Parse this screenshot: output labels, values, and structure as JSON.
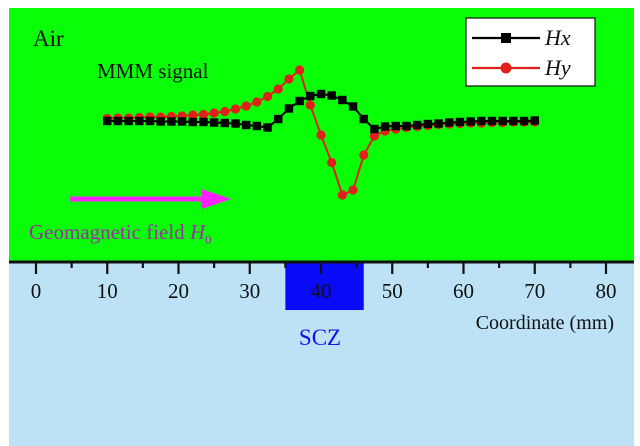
{
  "air_label": "Air",
  "signal_label": "MMM signal",
  "field_label": "Geomagnetic field ",
  "field_symbol": "H",
  "field_subscript": "0",
  "scz_label": "SCZ",
  "axis_title": "Coordinate (mm)",
  "colors": {
    "air": "#08ff07",
    "ground": "#bde2f6",
    "hx": "#000000",
    "hy": "#e0201b",
    "arrow": "#ff22ff",
    "field_text": "#a02ca6",
    "scz_fill": "#0a0afa",
    "scz_text": "#1414e6"
  },
  "chart_data": {
    "type": "line",
    "x_range": [
      0,
      80
    ],
    "ticks": [
      0,
      10,
      20,
      30,
      40,
      50,
      60,
      70,
      80
    ],
    "tick_labels": [
      "0",
      "10",
      "20",
      "30",
      "40",
      "50",
      "60",
      "70",
      "80"
    ],
    "scz_range": [
      35,
      46
    ],
    "arrow_range": [
      9,
      27
    ],
    "legend": [
      {
        "name": "Hx",
        "key": "hx"
      },
      {
        "name": "Hy",
        "key": "hy"
      }
    ],
    "series": [
      {
        "name": "Hx",
        "key": "hx",
        "marker": "square",
        "x": [
          10,
          11.5,
          13,
          14.5,
          16,
          17.5,
          19,
          20.5,
          22,
          23.5,
          25,
          26.5,
          28,
          29.5,
          31,
          32.5,
          34,
          35.5,
          37,
          38.5,
          40,
          41.5,
          43,
          44.5,
          46,
          47.5,
          49,
          50.5,
          52,
          53.5,
          55,
          56.5,
          58,
          59.5,
          61,
          62.5,
          64,
          65.5,
          67,
          68.5,
          70
        ],
        "y": [
          0.8,
          0.8,
          0.8,
          0.8,
          0.8,
          0.7,
          0.7,
          0.7,
          0.6,
          0.6,
          0.5,
          0.4,
          0.3,
          0,
          -0.2,
          -0.5,
          1.2,
          3.3,
          4.8,
          5.8,
          6.2,
          5.9,
          5.0,
          3.7,
          1.2,
          -0.8,
          -0.3,
          -0.2,
          -0.2,
          0,
          0.2,
          0.3,
          0.5,
          0.6,
          0.7,
          0.8,
          0.8,
          0.8,
          0.8,
          0.8,
          0.9
        ]
      },
      {
        "name": "Hy",
        "key": "hy",
        "marker": "circle",
        "x": [
          10,
          11.5,
          13,
          14.5,
          16,
          17.5,
          19,
          20.5,
          22,
          23.5,
          25,
          26.5,
          28,
          29.5,
          31,
          32.5,
          34,
          35.5,
          37,
          38.5,
          40,
          41.5,
          43,
          44.5,
          46,
          47.5,
          49,
          50.5,
          52,
          53.5,
          55,
          56.5,
          58,
          59.5,
          61,
          62.5,
          64,
          65.5,
          67,
          68.5,
          70
        ],
        "y": [
          1.3,
          1.4,
          1.4,
          1.5,
          1.6,
          1.6,
          1.7,
          1.8,
          2.0,
          2.1,
          2.4,
          2.7,
          3.2,
          3.8,
          4.6,
          5.7,
          7.2,
          9.2,
          11.0,
          4.0,
          -2.0,
          -7.5,
          -14.0,
          -13.0,
          -6.0,
          -2.2,
          -1.2,
          -0.8,
          -0.5,
          -0.3,
          -0.1,
          0.1,
          0.2,
          0.3,
          0.4,
          0.4,
          0.5,
          0.5,
          0.6,
          0.6,
          0.6
        ]
      }
    ]
  }
}
